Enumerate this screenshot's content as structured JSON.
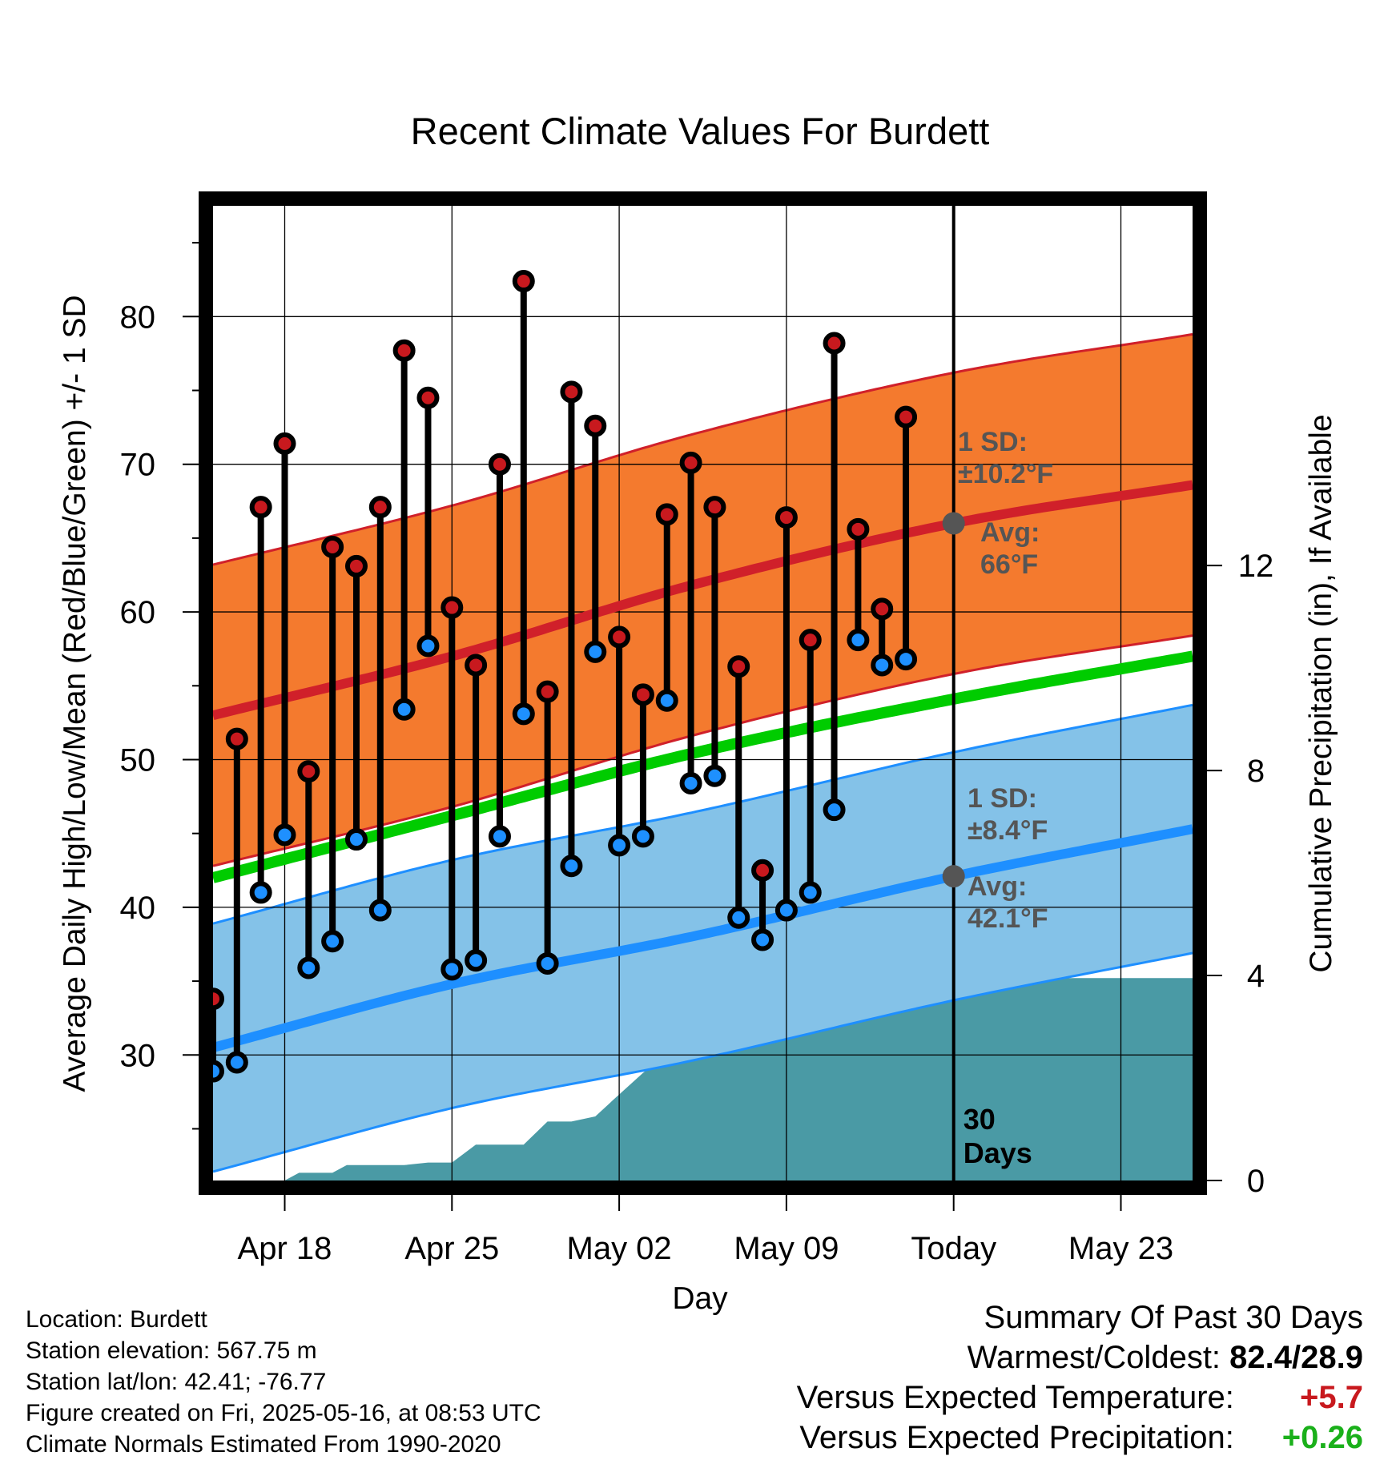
{
  "chart_data": {
    "type": "line",
    "title": "Recent Climate Values For Burdett",
    "xlabel": "Day",
    "ylabel": "Average Daily High/Low/Mean (Red/Blue/Green) +/- 1 SD",
    "y2label": "Cumulative Precipitation (in), If Available",
    "x_ticks": [
      {
        "day": 4,
        "label": "Apr 18"
      },
      {
        "day": 11,
        "label": "Apr 25"
      },
      {
        "day": 18,
        "label": "May 02"
      },
      {
        "day": 25,
        "label": "May 09"
      },
      {
        "day": 32,
        "label": "Today"
      },
      {
        "day": 39,
        "label": "May 23"
      }
    ],
    "xlim_days": [
      1,
      42
    ],
    "ylim": [
      21.5,
      87.5
    ],
    "y_ticks": [
      30,
      40,
      50,
      60,
      70,
      80
    ],
    "y2lim": [
      0,
      19.02
    ],
    "y2_ticks": [
      0,
      4,
      8,
      12
    ],
    "today_day": 32,
    "today_label": [
      "30",
      "Days"
    ],
    "normals": {
      "high": [
        {
          "day": 1,
          "value": 53.0
        },
        {
          "day": 11,
          "value": 57.0
        },
        {
          "day": 21,
          "value": 61.8
        },
        {
          "day": 32,
          "value": 66.0
        },
        {
          "day": 42,
          "value": 68.6
        }
      ],
      "high_sd": 10.2,
      "low": [
        {
          "day": 1,
          "value": 30.5
        },
        {
          "day": 11,
          "value": 34.8
        },
        {
          "day": 21,
          "value": 38.0
        },
        {
          "day": 32,
          "value": 42.1
        },
        {
          "day": 42,
          "value": 45.3
        }
      ],
      "low_sd": 8.4,
      "mean": [
        {
          "day": 1,
          "value": 42.0
        },
        {
          "day": 11,
          "value": 46.2
        },
        {
          "day": 21,
          "value": 50.4
        },
        {
          "day": 32,
          "value": 54.1
        },
        {
          "day": 42,
          "value": 57.0
        }
      ]
    },
    "annotations": {
      "high_sd": [
        "1 SD:",
        "±10.2°F"
      ],
      "high_avg": [
        "Avg:",
        "66°F"
      ],
      "low_sd": [
        "1 SD:",
        "±8.4°F"
      ],
      "low_avg": [
        "Avg:",
        "42.1°F"
      ]
    },
    "series": [
      {
        "name": "High",
        "color": "#c8191e",
        "values": [
          33.8,
          51.4,
          67.1,
          71.4,
          49.2,
          64.4,
          63.1,
          67.1,
          77.7,
          74.5,
          60.3,
          56.4,
          70.0,
          82.4,
          54.6,
          74.9,
          72.6,
          58.3,
          54.4,
          66.6,
          70.1,
          67.1,
          56.3,
          42.5,
          66.4,
          58.1,
          78.2,
          65.6,
          60.2,
          73.2
        ]
      },
      {
        "name": "Low",
        "color": "#1e90ff",
        "values": [
          28.9,
          29.5,
          41.0,
          44.9,
          35.9,
          37.7,
          44.6,
          39.8,
          53.4,
          57.7,
          35.8,
          36.4,
          44.8,
          53.1,
          36.2,
          42.8,
          57.3,
          44.2,
          44.8,
          54.0,
          48.4,
          48.9,
          39.3,
          37.8,
          39.8,
          41.0,
          46.6,
          58.1,
          56.4,
          56.8
        ]
      }
    ],
    "precip_cumulative": [
      {
        "day": 1,
        "value": 0
      },
      {
        "day": 4.0,
        "value": 0
      },
      {
        "day": 4.6,
        "value": 0.15
      },
      {
        "day": 6.0,
        "value": 0.15
      },
      {
        "day": 6.6,
        "value": 0.3
      },
      {
        "day": 9.0,
        "value": 0.3
      },
      {
        "day": 10.0,
        "value": 0.35
      },
      {
        "day": 11.0,
        "value": 0.35
      },
      {
        "day": 12.0,
        "value": 0.7
      },
      {
        "day": 14.0,
        "value": 0.7
      },
      {
        "day": 15.0,
        "value": 1.15
      },
      {
        "day": 16.0,
        "value": 1.15
      },
      {
        "day": 17.0,
        "value": 1.25
      },
      {
        "day": 17.7,
        "value": 1.55
      },
      {
        "day": 19.0,
        "value": 2.1
      },
      {
        "day": 19.8,
        "value": 2.4
      },
      {
        "day": 20.8,
        "value": 2.6
      },
      {
        "day": 21.8,
        "value": 3.7
      },
      {
        "day": 22.8,
        "value": 3.8
      },
      {
        "day": 23.5,
        "value": 3.8
      },
      {
        "day": 25.0,
        "value": 3.9
      },
      {
        "day": 28.0,
        "value": 3.9
      },
      {
        "day": 30.0,
        "value": 3.95
      },
      {
        "day": 42,
        "value": 3.95
      }
    ]
  },
  "info": {
    "location": "Location: Burdett",
    "elevation": "Station elevation: 567.75 m",
    "latlon": "Station lat/lon: 42.41; -76.77",
    "created": "Figure created on Fri, 2025-05-16, at 08:53 UTC",
    "normals": "Climate Normals Estimated From 1990-2020"
  },
  "summary": {
    "heading": "Summary Of Past 30 Days",
    "warm_cold_label": "Warmest/Coldest:",
    "warm_cold_value": "82.4/28.9",
    "temp_label": "Versus Expected Temperature:",
    "temp_value": "+5.7",
    "temp_color": "#c8191e",
    "precip_label": "Versus Expected Precipitation:",
    "precip_value": "+0.26",
    "precip_color": "#1ab01a"
  },
  "colors": {
    "high_band": "#f47a2e",
    "high_line": "#d0202a",
    "low_band": "#84c2e8",
    "low_line": "#1e8fff",
    "mean_line": "#00cc00",
    "precip_fill": "#4a9aa5",
    "avg_dot": "#555555"
  }
}
